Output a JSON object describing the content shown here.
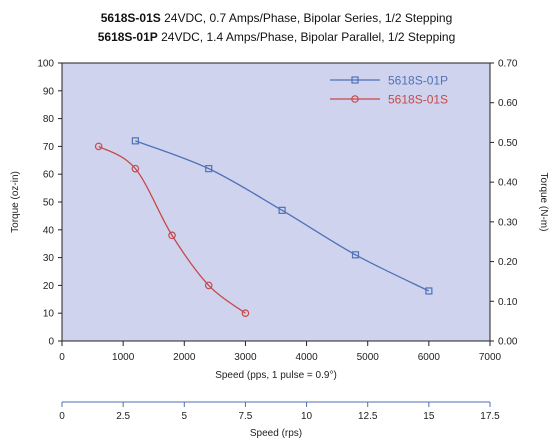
{
  "titles": [
    {
      "model": "5618S-01S",
      "desc": "24VDC, 0.7 Amps/Phase, Bipolar Series, 1/2 Stepping"
    },
    {
      "model": "5618S-01P",
      "desc": "24VDC, 1.4 Amps/Phase, Bipolar Parallel, 1/2 Stepping"
    }
  ],
  "colors": {
    "plot_bg": "#cfd3ee",
    "series_p": "#4f72b8",
    "series_s": "#c64a4a",
    "legend_p_text": "#4f72b8",
    "legend_s_text": "#c64a4a",
    "axis": "#222222",
    "secondary_axis": "#4f6fb3"
  },
  "chart_data": {
    "type": "line",
    "x_axis": {
      "label": "Speed (pps, 1 pulse = 0.9°)",
      "min": 0,
      "max": 7000,
      "ticks": [
        0,
        1000,
        2000,
        3000,
        4000,
        5000,
        6000,
        7000
      ]
    },
    "y_axis_left": {
      "label": "Torque (oz-in)",
      "min": 0,
      "max": 100,
      "ticks": [
        0,
        10,
        20,
        30,
        40,
        50,
        60,
        70,
        80,
        90,
        100
      ]
    },
    "y_axis_right": {
      "label": "Torque (N-m)",
      "min": 0,
      "max": 0.7,
      "ticks": [
        "0.00",
        "0.10",
        "0.20",
        "0.30",
        "0.40",
        "0.50",
        "0.60",
        "0.70"
      ]
    },
    "secondary_x_axis": {
      "label": "Speed (rps)",
      "min": 0,
      "max": 17.5,
      "ticks": [
        "0",
        "2.5",
        "5",
        "7.5",
        "10",
        "12.5",
        "15",
        "17.5"
      ]
    },
    "legend_position": "top-right",
    "grid": false,
    "series": [
      {
        "name": "5618S-01P",
        "marker": "square",
        "x": [
          1200,
          2400,
          3600,
          4800,
          6000
        ],
        "y": [
          72,
          62,
          47,
          31,
          18
        ]
      },
      {
        "name": "5618S-01S",
        "marker": "circle",
        "x": [
          600,
          1200,
          1800,
          2400,
          3000
        ],
        "y": [
          70,
          62,
          38,
          20,
          10
        ]
      }
    ]
  }
}
